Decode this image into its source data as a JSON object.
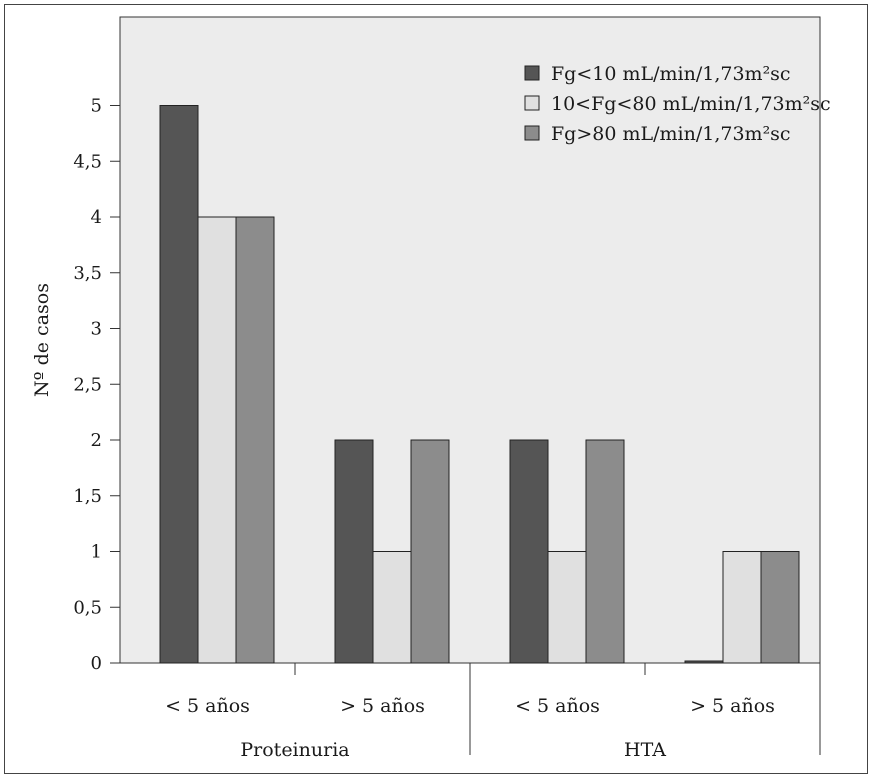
{
  "chart_data": {
    "type": "bar",
    "groups": [
      {
        "label": "Proteinuria",
        "categories": [
          "< 5 años",
          "> 5 años"
        ]
      },
      {
        "label": "HTA",
        "categories": [
          "< 5 años",
          "> 5 años"
        ]
      }
    ],
    "categories": [
      "< 5 años",
      "> 5 años",
      "< 5 años",
      "> 5 años"
    ],
    "series": [
      {
        "name": "Fg<10 mL/min/1,73m²sc",
        "color": "#555555",
        "values": [
          5,
          2,
          2,
          0
        ]
      },
      {
        "name": "10<Fg<80 mL/min/1,73m²sc",
        "color": "#e0e0e0",
        "values": [
          4,
          1,
          1,
          1
        ]
      },
      {
        "name": "Fg>80 mL/min/1,73m²sc",
        "color": "#8c8c8c",
        "values": [
          4,
          2,
          2,
          1
        ]
      }
    ],
    "ylabel": "Nº de casos",
    "xlabel": "",
    "ylim": [
      0,
      5.5
    ],
    "yticks": [
      "0",
      "0,5",
      "1",
      "1,5",
      "2",
      "2,5",
      "3",
      "3,5",
      "4",
      "4,5",
      "5"
    ],
    "plot_background": "#ececec",
    "legend_position": "top-right",
    "grid": false
  }
}
